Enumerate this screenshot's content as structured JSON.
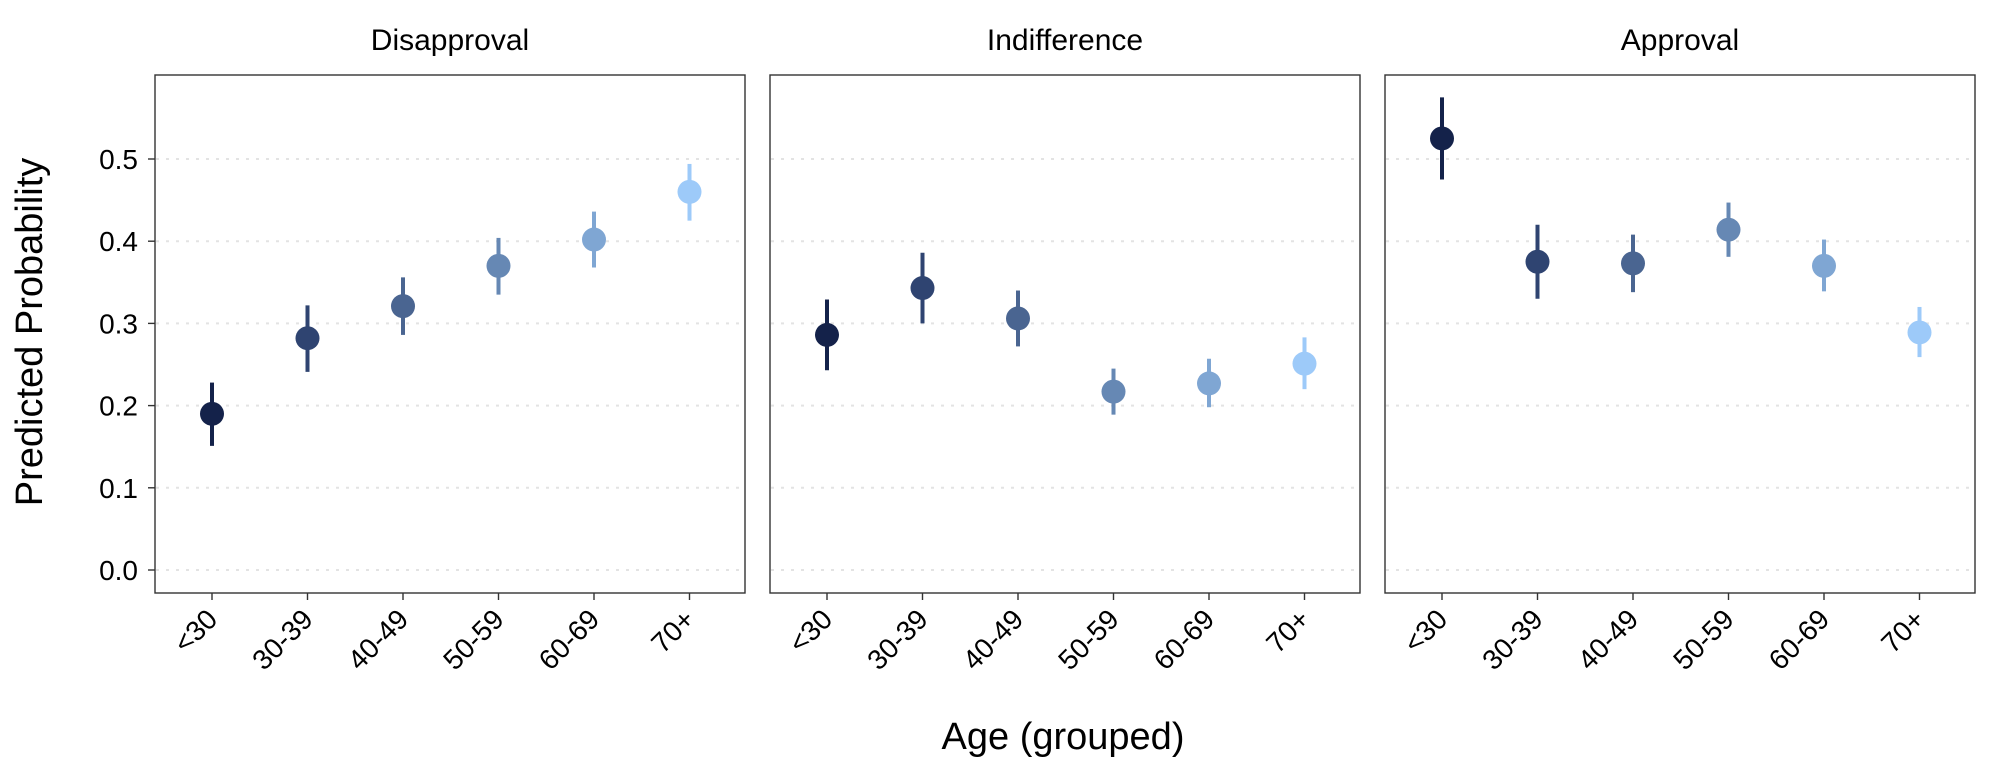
{
  "chart_data": {
    "type": "scatter",
    "xlabel": "Age (grouped)",
    "ylabel": "Predicted Probability",
    "categories": [
      "<30",
      "30-39",
      "40-49",
      "50-59",
      "60-69",
      "70+"
    ],
    "y_ticks": [
      "0.0",
      "0.1",
      "0.2",
      "0.3",
      "0.4",
      "0.5"
    ],
    "ylim": [
      -0.03,
      0.6
    ],
    "grid": "horizontal dotted",
    "colors": [
      "#14224a",
      "#2f4471",
      "#4a6591",
      "#6688b4",
      "#7fa6d3",
      "#9dcaf9"
    ],
    "panels": [
      {
        "title": "Disapproval",
        "points": [
          {
            "category": "<30",
            "estimate": 0.19,
            "lower": 0.151,
            "upper": 0.228
          },
          {
            "category": "30-39",
            "estimate": 0.282,
            "lower": 0.241,
            "upper": 0.322
          },
          {
            "category": "40-49",
            "estimate": 0.321,
            "lower": 0.286,
            "upper": 0.356
          },
          {
            "category": "50-59",
            "estimate": 0.37,
            "lower": 0.335,
            "upper": 0.404
          },
          {
            "category": "60-69",
            "estimate": 0.402,
            "lower": 0.368,
            "upper": 0.436
          },
          {
            "category": "70+",
            "estimate": 0.46,
            "lower": 0.425,
            "upper": 0.494
          }
        ]
      },
      {
        "title": "Indifference",
        "points": [
          {
            "category": "<30",
            "estimate": 0.286,
            "lower": 0.243,
            "upper": 0.329
          },
          {
            "category": "30-39",
            "estimate": 0.343,
            "lower": 0.3,
            "upper": 0.386
          },
          {
            "category": "40-49",
            "estimate": 0.306,
            "lower": 0.272,
            "upper": 0.34
          },
          {
            "category": "50-59",
            "estimate": 0.217,
            "lower": 0.189,
            "upper": 0.245
          },
          {
            "category": "60-69",
            "estimate": 0.227,
            "lower": 0.198,
            "upper": 0.257
          },
          {
            "category": "70+",
            "estimate": 0.251,
            "lower": 0.22,
            "upper": 0.283
          }
        ]
      },
      {
        "title": "Approval",
        "points": [
          {
            "category": "<30",
            "estimate": 0.525,
            "lower": 0.475,
            "upper": 0.575
          },
          {
            "category": "30-39",
            "estimate": 0.375,
            "lower": 0.33,
            "upper": 0.42
          },
          {
            "category": "40-49",
            "estimate": 0.373,
            "lower": 0.338,
            "upper": 0.408
          },
          {
            "category": "50-59",
            "estimate": 0.414,
            "lower": 0.381,
            "upper": 0.447
          },
          {
            "category": "60-69",
            "estimate": 0.37,
            "lower": 0.339,
            "upper": 0.402
          },
          {
            "category": "70+",
            "estimate": 0.289,
            "lower": 0.259,
            "upper": 0.32
          }
        ]
      }
    ]
  }
}
